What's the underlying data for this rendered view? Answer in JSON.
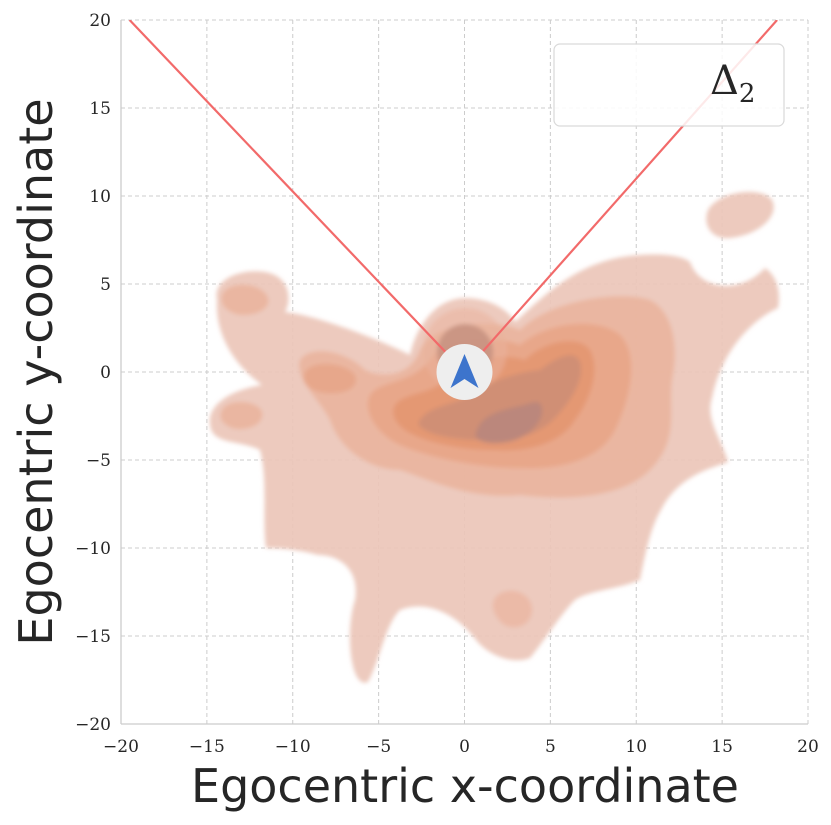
{
  "chart_data": {
    "type": "heatmap",
    "subtype": "kde-contour",
    "xlabel": "Egocentric x-coordinate",
    "ylabel": "Egocentric y-coordinate",
    "xlim": [
      -20,
      20
    ],
    "ylim": [
      -20,
      20
    ],
    "xticks": [
      -20,
      -15,
      -10,
      -5,
      0,
      5,
      10,
      15,
      20
    ],
    "yticks": [
      -20,
      -15,
      -10,
      -5,
      0,
      5,
      10,
      15,
      20
    ],
    "grid": true,
    "legend": {
      "label": "Δ",
      "subscript": "2",
      "placement": "top-right"
    },
    "colors": {
      "density_low": "#ecc6b8",
      "density_mid": "#e8a07a",
      "density_high": "#b9877c",
      "field_of_view_lines": "#f26a6a",
      "agent_arrow": "#3d74cc",
      "agent_disc": "#eeeeee",
      "grid": "#cccccc"
    },
    "field_of_view": {
      "origin": [
        0,
        0
      ],
      "left_end": [
        -19.5,
        20
      ],
      "right_end": [
        18.2,
        20
      ]
    },
    "agent": {
      "x": 0,
      "y": 0,
      "heading_deg": 90
    },
    "density_peaks": [
      {
        "x": 3,
        "y": -3,
        "level": 1.0
      },
      {
        "x": 1,
        "y": 1.5,
        "level": 0.7
      },
      {
        "x": -7.5,
        "y": -0.5,
        "level": 0.35
      },
      {
        "x": -13,
        "y": 4,
        "level": 0.3
      },
      {
        "x": -13,
        "y": -2.5,
        "level": 0.25
      },
      {
        "x": 16,
        "y": 9,
        "level": 0.25
      },
      {
        "x": 3,
        "y": -13,
        "level": 0.2
      },
      {
        "x": -6,
        "y": -16,
        "level": 0.15
      }
    ]
  }
}
